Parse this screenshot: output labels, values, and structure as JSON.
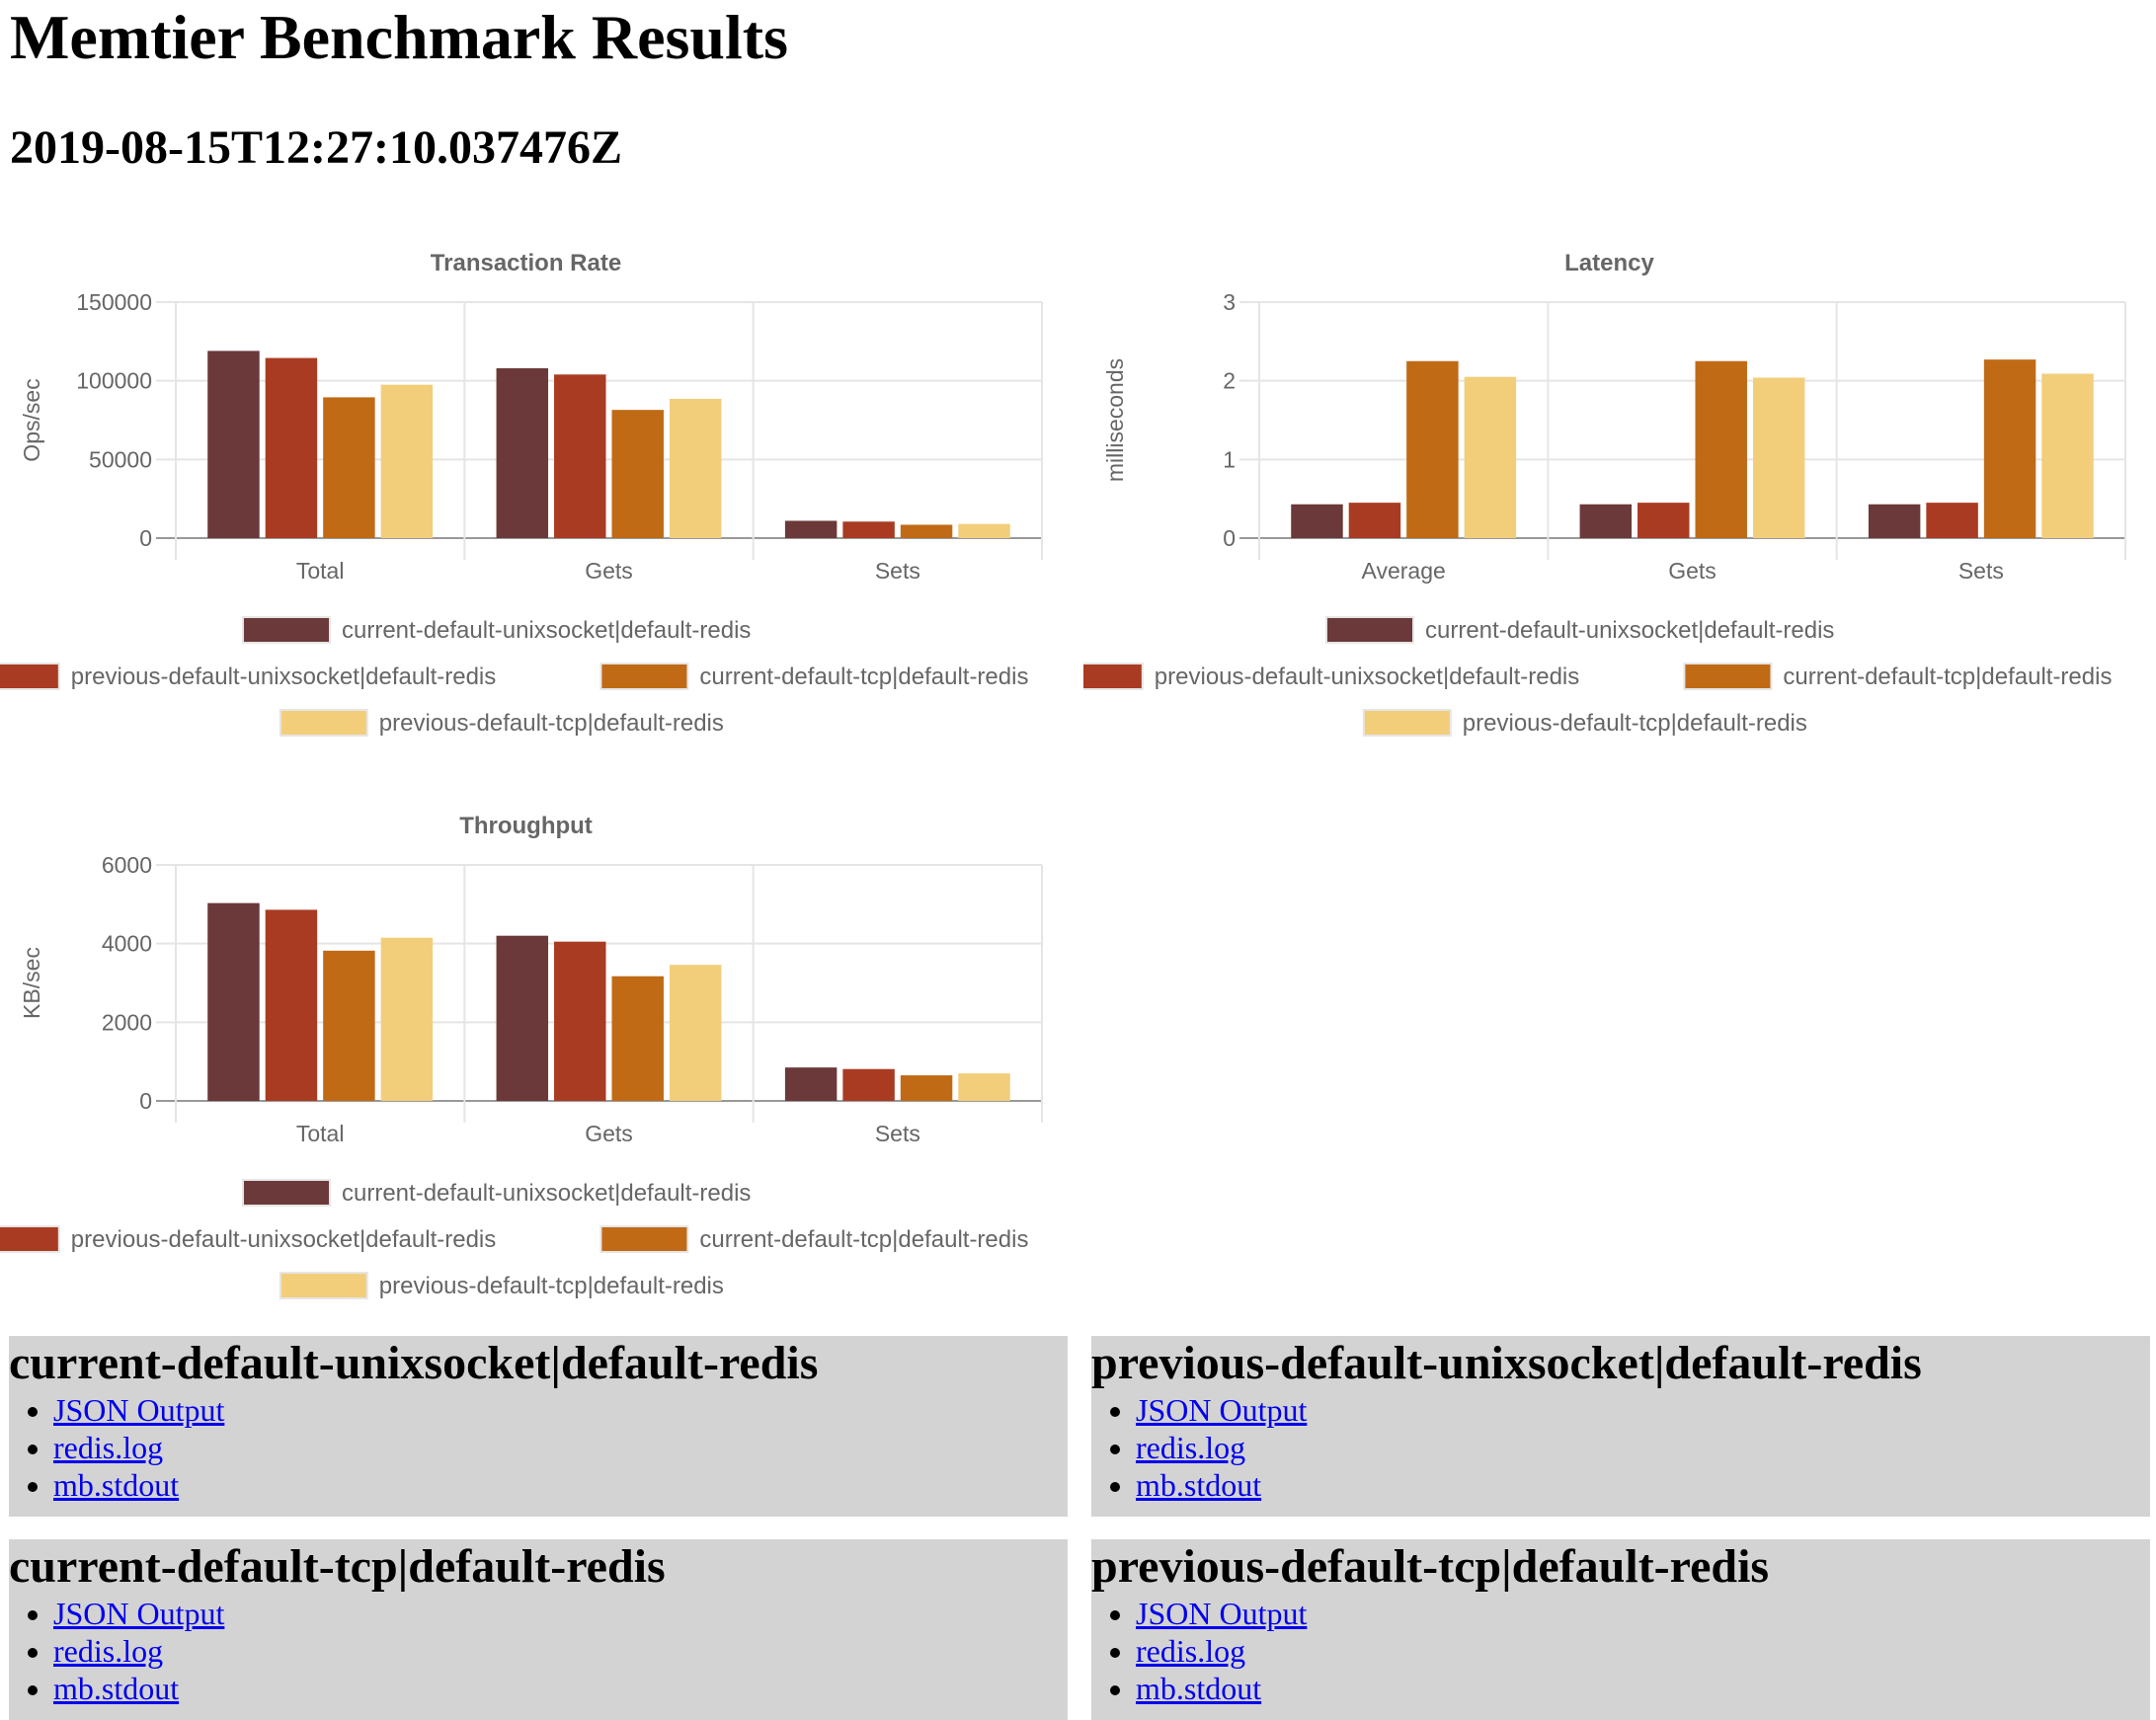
{
  "page": {
    "title": "Memtier Benchmark Results",
    "timestamp": "2019-08-15T12:27:10.037476Z"
  },
  "colors": {
    "series": [
      "#6b3939",
      "#a93b22",
      "#c06a16",
      "#f2ce7b"
    ],
    "grid": "#e5e5e5",
    "text": "#666666"
  },
  "chart_data": [
    {
      "type": "bar",
      "title": "Transaction Rate",
      "ylabel": "Ops/sec",
      "xlabel": "",
      "categories": [
        "Total",
        "Gets",
        "Sets"
      ],
      "ylim": [
        0,
        150000
      ],
      "yticks": [
        "150000",
        "100000",
        "50000",
        "0"
      ],
      "ytick_values": [
        150000,
        100000,
        50000,
        0
      ],
      "series": [
        {
          "name": "current-default-unixsocket|default-redis",
          "values": [
            119000,
            108000,
            11000
          ]
        },
        {
          "name": "previous-default-unixsocket|default-redis",
          "values": [
            114500,
            104000,
            10500
          ]
        },
        {
          "name": "current-default-tcp|default-redis",
          "values": [
            89500,
            81500,
            8500
          ]
        },
        {
          "name": "previous-default-tcp|default-redis",
          "values": [
            97500,
            88500,
            9000
          ]
        }
      ],
      "legend": "bottom"
    },
    {
      "type": "bar",
      "title": "Latency",
      "ylabel": "milliseconds",
      "xlabel": "",
      "categories": [
        "Average",
        "Gets",
        "Sets"
      ],
      "ylim": [
        0,
        3
      ],
      "yticks": [
        "3",
        "2",
        "1",
        "0"
      ],
      "ytick_values": [
        3,
        2,
        1,
        0
      ],
      "series": [
        {
          "name": "current-default-unixsocket|default-redis",
          "values": [
            0.43,
            0.43,
            0.43
          ]
        },
        {
          "name": "previous-default-unixsocket|default-redis",
          "values": [
            0.45,
            0.45,
            0.45
          ]
        },
        {
          "name": "current-default-tcp|default-redis",
          "values": [
            2.25,
            2.25,
            2.27
          ]
        },
        {
          "name": "previous-default-tcp|default-redis",
          "values": [
            2.05,
            2.04,
            2.09
          ]
        }
      ],
      "legend": "bottom"
    },
    {
      "type": "bar",
      "title": "Throughput",
      "ylabel": "KB/sec",
      "xlabel": "",
      "categories": [
        "Total",
        "Gets",
        "Sets"
      ],
      "ylim": [
        0,
        6000
      ],
      "yticks": [
        "6000",
        "4000",
        "2000",
        "0"
      ],
      "ytick_values": [
        6000,
        4000,
        2000,
        0
      ],
      "series": [
        {
          "name": "current-default-unixsocket|default-redis",
          "values": [
            5030,
            4200,
            850
          ]
        },
        {
          "name": "previous-default-unixsocket|default-redis",
          "values": [
            4860,
            4050,
            810
          ]
        },
        {
          "name": "current-default-tcp|default-redis",
          "values": [
            3820,
            3170,
            650
          ]
        },
        {
          "name": "previous-default-tcp|default-redis",
          "values": [
            4150,
            3460,
            700
          ]
        }
      ],
      "legend": "bottom"
    }
  ],
  "runs": [
    {
      "name": "current-default-unixsocket|default-redis",
      "links": [
        "JSON Output",
        "redis.log",
        "mb.stdout"
      ]
    },
    {
      "name": "previous-default-unixsocket|default-redis",
      "links": [
        "JSON Output",
        "redis.log",
        "mb.stdout"
      ]
    },
    {
      "name": "current-default-tcp|default-redis",
      "links": [
        "JSON Output",
        "redis.log",
        "mb.stdout"
      ]
    },
    {
      "name": "previous-default-tcp|default-redis",
      "links": [
        "JSON Output",
        "redis.log",
        "mb.stdout"
      ]
    }
  ]
}
